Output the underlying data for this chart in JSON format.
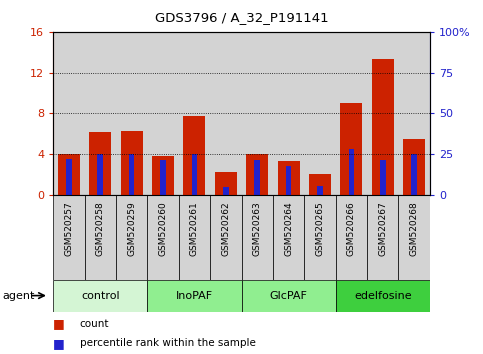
{
  "title": "GDS3796 / A_32_P191141",
  "categories": [
    "GSM520257",
    "GSM520258",
    "GSM520259",
    "GSM520260",
    "GSM520261",
    "GSM520262",
    "GSM520263",
    "GSM520264",
    "GSM520265",
    "GSM520266",
    "GSM520267",
    "GSM520268"
  ],
  "red_values": [
    4.0,
    6.2,
    6.3,
    3.8,
    7.7,
    2.2,
    4.0,
    3.3,
    2.0,
    9.0,
    13.3,
    5.5
  ],
  "blue_values": [
    3.5,
    4.0,
    4.0,
    3.4,
    4.0,
    0.8,
    3.4,
    2.8,
    0.9,
    4.5,
    3.4,
    4.0
  ],
  "ylim_left": [
    0,
    16
  ],
  "ylim_right": [
    0,
    100
  ],
  "yticks_left": [
    0,
    4,
    8,
    12,
    16
  ],
  "yticks_right": [
    0,
    25,
    50,
    75,
    100
  ],
  "ytick_labels_right": [
    "0",
    "25",
    "50",
    "75",
    "100%"
  ],
  "groups": [
    {
      "label": "control",
      "start": 0,
      "end": 3,
      "color": "#d4f5d4"
    },
    {
      "label": "InoPAF",
      "start": 3,
      "end": 6,
      "color": "#90ee90"
    },
    {
      "label": "GlcPAF",
      "start": 6,
      "end": 9,
      "color": "#90ee90"
    },
    {
      "label": "edelfosine",
      "start": 9,
      "end": 12,
      "color": "#3ecf3e"
    }
  ],
  "bar_color_red": "#cc2200",
  "bar_color_blue": "#2222cc",
  "tick_color_left": "#cc2200",
  "tick_color_right": "#2222cc",
  "col_bg_color": "#d3d3d3",
  "agent_label": "agent",
  "legend_count": "count",
  "legend_pct": "percentile rank within the sample",
  "bar_width": 0.7,
  "blue_bar_width": 0.18
}
